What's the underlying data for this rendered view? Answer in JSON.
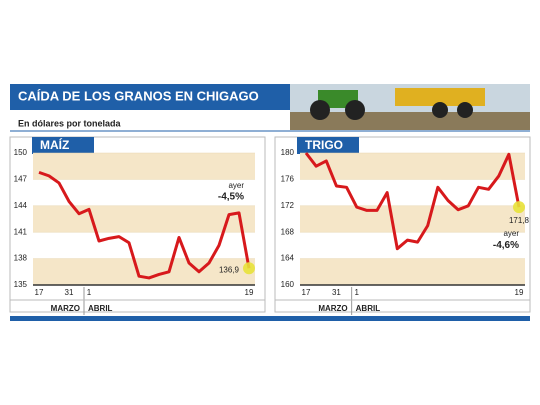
{
  "header": {
    "title": "CAÍDA DE LOS GRANOS EN CHIGAGO",
    "subtitle": "En dólares por tonelada"
  },
  "chart_data": [
    {
      "type": "line",
      "title": "MAÍZ",
      "color": "#d7191c",
      "categories": [
        "17",
        null,
        null,
        "31",
        null,
        "1",
        null,
        null,
        null,
        null,
        null,
        null,
        null,
        null,
        null,
        null,
        null,
        null,
        null,
        null,
        null,
        "19"
      ],
      "months": [
        "MARZO",
        "ABRIL"
      ],
      "values": [
        147.8,
        147.4,
        146.6,
        144.5,
        143.1,
        143.6,
        140.0,
        140.3,
        140.5,
        139.8,
        136.0,
        135.8,
        136.2,
        136.5,
        140.4,
        137.5,
        136.5,
        137.5,
        139.5,
        143.0,
        143.2,
        136.9
      ],
      "value_labels": [
        null,
        null,
        null,
        null,
        null,
        null,
        null,
        null,
        null,
        null,
        null,
        null,
        null,
        null,
        null,
        null,
        null,
        null,
        null,
        null,
        null,
        "136,9"
      ],
      "annotations": [
        "ayer",
        "-4,5%"
      ],
      "ylim": [
        135,
        150
      ],
      "yticks": [
        135,
        138,
        141,
        144,
        147,
        150
      ]
    },
    {
      "type": "line",
      "title": "TRIGO",
      "color": "#d7191c",
      "categories": [
        "17",
        null,
        null,
        "31",
        null,
        "1",
        null,
        null,
        null,
        null,
        null,
        null,
        null,
        null,
        null,
        null,
        null,
        null,
        null,
        null,
        null,
        "19"
      ],
      "months": [
        "MARZO",
        "ABRIL"
      ],
      "values": [
        180.0,
        178.0,
        178.8,
        175.0,
        174.8,
        171.8,
        171.3,
        171.3,
        174.0,
        165.5,
        166.8,
        166.5,
        169.0,
        174.8,
        172.8,
        171.4,
        172.0,
        174.8,
        174.5,
        176.5,
        179.8,
        171.8
      ],
      "value_labels": [
        null,
        null,
        null,
        null,
        null,
        null,
        null,
        null,
        null,
        null,
        null,
        null,
        null,
        null,
        null,
        null,
        null,
        null,
        null,
        null,
        null,
        "171,8"
      ],
      "annotations": [
        "ayer",
        "-4,6%"
      ],
      "ylim": [
        160,
        180
      ],
      "yticks": [
        160,
        164,
        168,
        172,
        176,
        180
      ]
    }
  ]
}
